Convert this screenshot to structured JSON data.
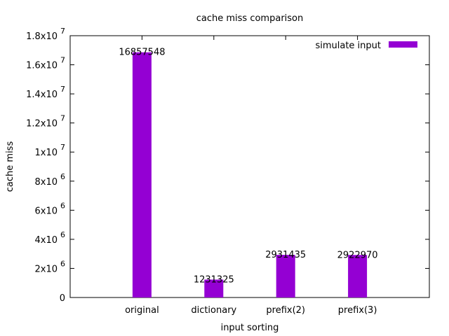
{
  "chart_data": {
    "type": "bar",
    "title": "cache miss comparison",
    "xlabel": "input sorting",
    "ylabel": "cache miss",
    "categories": [
      "original",
      "dictionary",
      "prefix(2)",
      "prefix(3)"
    ],
    "series": [
      {
        "name": "simulate input",
        "color": "#9400d3",
        "values": [
          16857548,
          1231325,
          2931435,
          2922970
        ],
        "labels": [
          "16857548",
          "1231325",
          "2931435",
          "2922970"
        ]
      }
    ],
    "ylim": [
      0,
      18000000
    ],
    "yticks": [
      {
        "value": 0,
        "mantissa": "0",
        "exponent": ""
      },
      {
        "value": 2000000,
        "mantissa": "2x10",
        "exponent": "6"
      },
      {
        "value": 4000000,
        "mantissa": "4x10",
        "exponent": "6"
      },
      {
        "value": 6000000,
        "mantissa": "6x10",
        "exponent": "6"
      },
      {
        "value": 8000000,
        "mantissa": "8x10",
        "exponent": "6"
      },
      {
        "value": 10000000,
        "mantissa": "1x10",
        "exponent": "7"
      },
      {
        "value": 12000000,
        "mantissa": "1.2x10",
        "exponent": "7"
      },
      {
        "value": 14000000,
        "mantissa": "1.4x10",
        "exponent": "7"
      },
      {
        "value": 16000000,
        "mantissa": "1.6x10",
        "exponent": "7"
      },
      {
        "value": 18000000,
        "mantissa": "1.8x10",
        "exponent": "7"
      }
    ],
    "legend_position": "top-right",
    "grid": false
  }
}
